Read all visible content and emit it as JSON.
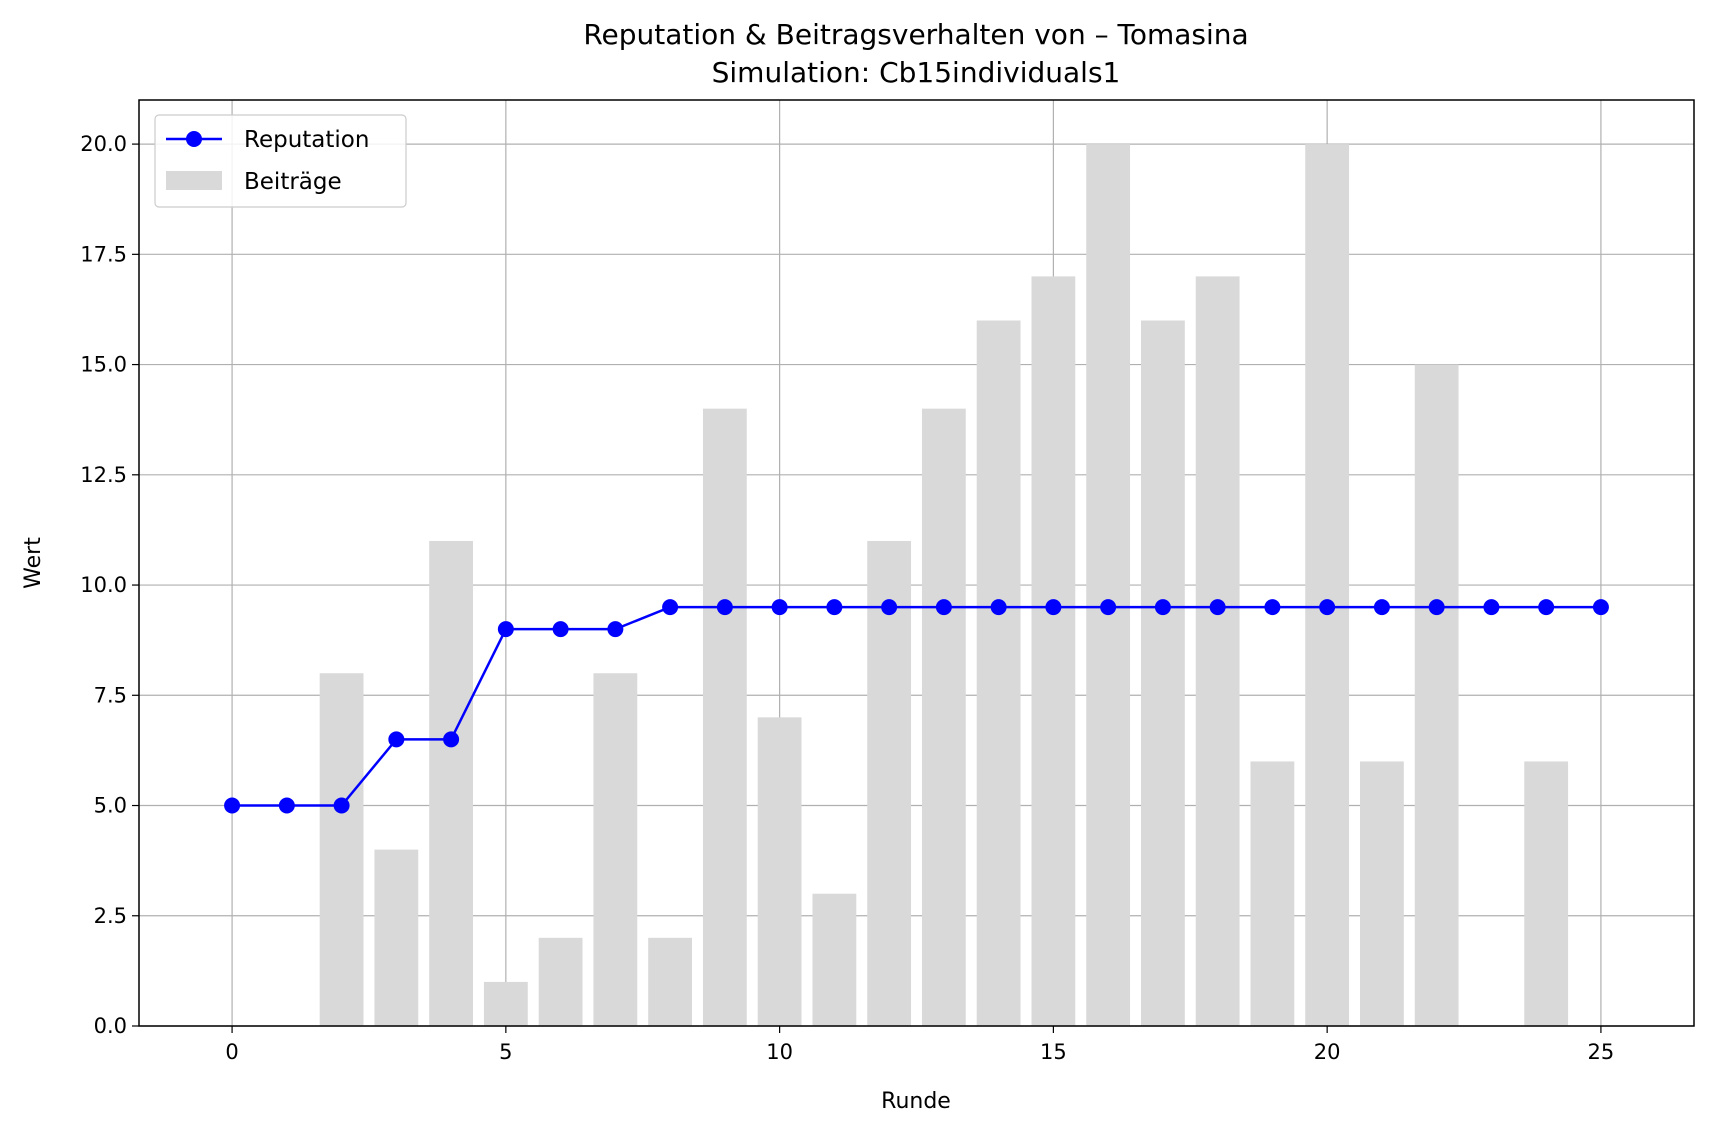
{
  "chart_data": {
    "type": "bar",
    "title": "Reputation & Beitragsverhalten von – Tomasina",
    "subtitle": "Simulation: Cb15individuals1",
    "xlabel": "Runde",
    "ylabel": "Wert",
    "xlim": [
      -1.7,
      26.7
    ],
    "ylim": [
      0,
      21
    ],
    "xticks": [
      0,
      5,
      10,
      15,
      20,
      25
    ],
    "yticks": [
      0.0,
      2.5,
      5.0,
      7.5,
      10.0,
      12.5,
      15.0,
      17.5,
      20.0
    ],
    "ytick_labels": [
      "0.0",
      "2.5",
      "5.0",
      "7.5",
      "10.0",
      "12.5",
      "15.0",
      "17.5",
      "20.0"
    ],
    "grid": true,
    "legend_position": "top-left",
    "x": [
      0,
      1,
      2,
      3,
      4,
      5,
      6,
      7,
      8,
      9,
      10,
      11,
      12,
      13,
      14,
      15,
      16,
      17,
      18,
      19,
      20,
      21,
      22,
      23,
      24,
      25
    ],
    "series": [
      {
        "name": "Reputation",
        "type": "line",
        "color": "#0000ff",
        "marker": "circle",
        "values": [
          5,
          5,
          5,
          6.5,
          6.5,
          9,
          9,
          9,
          9.5,
          9.5,
          9.5,
          9.5,
          9.5,
          9.5,
          9.5,
          9.5,
          9.5,
          9.5,
          9.5,
          9.5,
          9.5,
          9.5,
          9.5,
          9.5,
          9.5,
          9.5
        ]
      },
      {
        "name": "Beiträge",
        "type": "bar",
        "color": "#d9d9d9",
        "values": [
          0,
          0,
          8,
          4,
          11,
          1,
          2,
          8,
          2,
          14,
          7,
          3,
          11,
          14,
          16,
          17,
          20,
          16,
          17,
          6,
          20,
          6,
          15,
          0,
          6,
          0
        ]
      }
    ]
  }
}
